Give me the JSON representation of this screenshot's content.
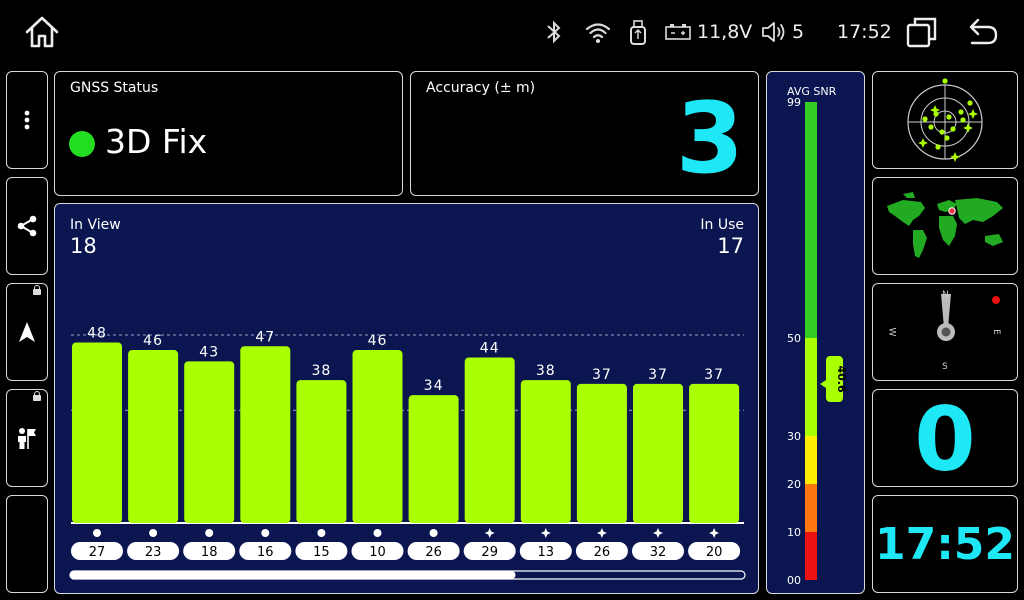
{
  "status_bar": {
    "battery_voltage": "11,8V",
    "volume_level": "5",
    "time": "17:52"
  },
  "gnss_status": {
    "label": "GNSS Status",
    "value": "3D Fix",
    "indicator_color": "#22dd22"
  },
  "accuracy": {
    "label": "Accuracy (± m)",
    "value": "3"
  },
  "satellites": {
    "in_view_label": "In View",
    "in_view": "18",
    "in_use_label": "In Use",
    "in_use": "17"
  },
  "chart_data": {
    "type": "bar",
    "categories": [
      "27",
      "23",
      "18",
      "16",
      "15",
      "10",
      "26",
      "29",
      "13",
      "26",
      "32",
      "20"
    ],
    "values": [
      48,
      46,
      43,
      47,
      38,
      46,
      34,
      44,
      38,
      37,
      37,
      37
    ],
    "constellation_icons": [
      "dot",
      "dot",
      "dot",
      "dot",
      "dot",
      "dot",
      "dot",
      "star",
      "star",
      "star",
      "star",
      "star"
    ],
    "ylim": [
      0,
      60
    ],
    "gridlines": [
      30,
      50
    ],
    "bar_color": "#aaff00",
    "scroll_position": 0.66
  },
  "snr_gauge": {
    "title": "AVG SNR",
    "value": "40.6",
    "value_num": 40.6,
    "ticks": [
      "99",
      "50",
      "30",
      "20",
      "10",
      "00"
    ],
    "colors": {
      "green": "#33cc22",
      "light_green": "#aaff00",
      "yellow": "#ffee00",
      "orange": "#ff7711",
      "red": "#ee1111"
    }
  },
  "speed": {
    "value": "0"
  },
  "clock": {
    "value": "17:52"
  },
  "compass": {
    "n": "N",
    "e": "E",
    "s": "S",
    "w": "W"
  },
  "accent_color": "#1ee8f5"
}
